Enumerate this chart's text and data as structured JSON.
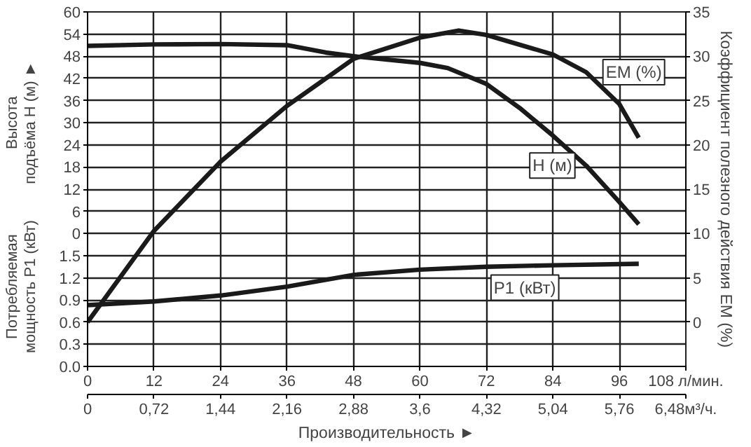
{
  "chart_data": {
    "type": "line",
    "xlabel": "Производительность ►",
    "ylabel": "Высота\nподъёма H (м) ►",
    "y2label": "Коэффициент полезного действия ЕМ (%)",
    "y3label": "Потребляемая\nмощность P1 (кВт)",
    "xlim": [
      0,
      108
    ],
    "xticks": [
      0,
      12,
      24,
      36,
      48,
      60,
      72,
      84,
      96,
      {
        "value": 108,
        "label": "108 л/мин."
      }
    ],
    "x2lim": [
      0,
      6.48
    ],
    "x2ticks": [
      0,
      {
        "value": 0.72,
        "label": "0,72"
      },
      {
        "value": 1.44,
        "label": "1,44"
      },
      {
        "value": 2.16,
        "label": "2,16"
      },
      {
        "value": 2.88,
        "label": "2,88"
      },
      {
        "value": 3.6,
        "label": "3,6"
      },
      {
        "value": 4.32,
        "label": "4,32"
      },
      {
        "value": 5.04,
        "label": "5,04"
      },
      {
        "value": 5.76,
        "label": "5,76"
      },
      {
        "value": 6.48,
        "label": "6,48м³/ч."
      }
    ],
    "ylim": [
      -36,
      60
    ],
    "yticks": [
      0,
      6,
      12,
      18,
      24,
      30,
      36,
      42,
      48,
      54,
      60
    ],
    "y2lim": [
      -5,
      35
    ],
    "y2ticks": [
      0,
      5,
      10,
      15,
      20,
      25,
      30,
      35
    ],
    "y3lim": [
      0,
      4.8
    ],
    "y3ticks": [
      {
        "value": 0,
        "label": "0.0"
      },
      0.3,
      0.6,
      0.9,
      1.2,
      1.5
    ],
    "grid": true,
    "legend": false,
    "series": [
      {
        "name": "H (м)",
        "color": "#1a1a1a",
        "x": [
          0,
          12,
          24,
          36,
          43,
          48,
          60,
          65,
          72,
          78,
          84,
          90,
          96,
          99.5
        ],
        "values": [
          50.8,
          51.2,
          51.3,
          51,
          49,
          48,
          46.2,
          44.8,
          40.5,
          34,
          26.5,
          18.4,
          8.5,
          2.5
        ]
      },
      {
        "name": "ЕМ (%)",
        "color": "#1a1a1a",
        "axis": "y2",
        "x": [
          0,
          12,
          24,
          36,
          48,
          60,
          67,
          72,
          84,
          90,
          96,
          99.5
        ],
        "values": [
          0,
          10.3,
          18.1,
          24.4,
          29.7,
          32.1,
          32.9,
          32.4,
          30.2,
          28.2,
          24.6,
          20.8
        ]
      },
      {
        "name": "P1 (кВт)",
        "color": "#1a1a1a",
        "axis": "y3",
        "x": [
          0,
          12,
          24,
          36,
          48,
          60,
          72,
          84,
          99.5
        ],
        "values": [
          0.83,
          0.88,
          0.96,
          1.08,
          1.24,
          1.31,
          1.35,
          1.37,
          1.39
        ]
      }
    ]
  }
}
